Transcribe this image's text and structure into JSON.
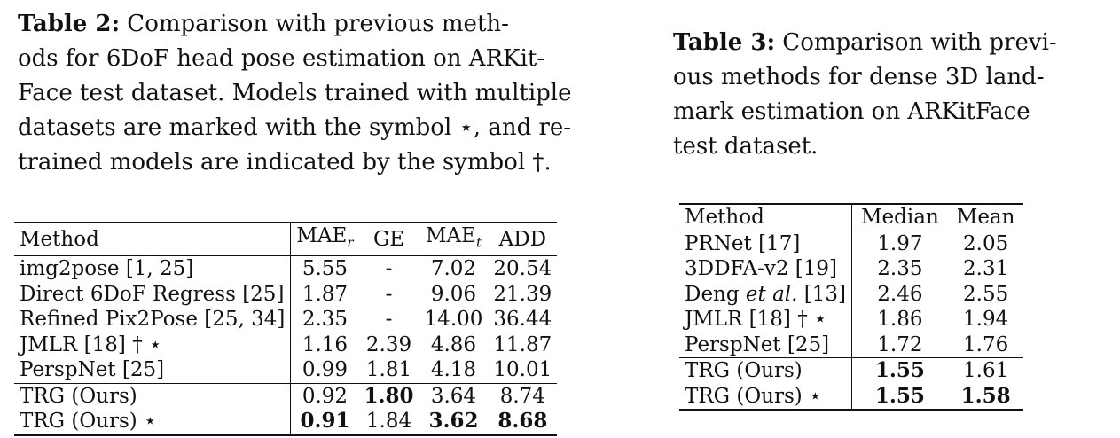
{
  "table2": {
    "caption_label": "Table 2:",
    "caption_lines": [
      " Comparison with previous meth-",
      "ods for 6DoF head pose estimation on ARKit-",
      "Face test dataset. Models trained with multiple",
      "datasets are marked with the symbol ⋆, and re-",
      "trained models are indicated by the symbol †."
    ],
    "headers": [
      "Method",
      "MAE",
      "r",
      "GE",
      "MAE",
      "t",
      "ADD"
    ],
    "rows": [
      {
        "method": "img2pose [1, 25]",
        "mae_r": "5.55",
        "ge": "-",
        "mae_t": "7.02",
        "add": "20.54"
      },
      {
        "method": "Direct 6DoF Regress [25]",
        "mae_r": "1.87",
        "ge": "-",
        "mae_t": "9.06",
        "add": "21.39"
      },
      {
        "method": "Refined Pix2Pose [25, 34]",
        "mae_r": "2.35",
        "ge": "-",
        "mae_t": "14.00",
        "add": "36.44"
      },
      {
        "method": "JMLR [18] † ⋆",
        "mae_r": "1.16",
        "ge": "2.39",
        "mae_t": "4.86",
        "add": "11.87"
      },
      {
        "method": "PerspNet [25]",
        "mae_r": "0.99",
        "ge": "1.81",
        "mae_t": "4.18",
        "add": "10.01"
      },
      {
        "method": "TRG (Ours)",
        "mae_r": "0.92",
        "ge": "1.80",
        "mae_t": "3.64",
        "add": "8.74"
      },
      {
        "method": "TRG (Ours) ⋆",
        "mae_r": "0.91",
        "ge": "1.84",
        "mae_t": "3.62",
        "add": "8.68"
      }
    ]
  },
  "table3": {
    "caption_label": "Table 3:",
    "caption_lines": [
      " Comparison with previ-",
      "ous methods for dense 3D land-",
      "mark estimation on ARKitFace",
      "test dataset."
    ],
    "headers": [
      "Method",
      "Median",
      "Mean"
    ],
    "rows": [
      {
        "method_pre": "PRNet [17]",
        "method_it": "",
        "method_post": "",
        "median": "1.97",
        "mean": "2.05"
      },
      {
        "method_pre": "3DDFA-v2 [19]",
        "method_it": "",
        "method_post": "",
        "median": "2.35",
        "mean": "2.31"
      },
      {
        "method_pre": "Deng ",
        "method_it": "et al.",
        "method_post": " [13]",
        "median": "2.46",
        "mean": "2.55"
      },
      {
        "method_pre": "JMLR [18] † ⋆",
        "method_it": "",
        "method_post": "",
        "median": "1.86",
        "mean": "1.94"
      },
      {
        "method_pre": "PerspNet [25]",
        "method_it": "",
        "method_post": "",
        "median": "1.72",
        "mean": "1.76"
      },
      {
        "method_pre": "TRG (Ours)",
        "method_it": "",
        "method_post": "",
        "median": "1.55",
        "mean": "1.61"
      },
      {
        "method_pre": "TRG (Ours) ⋆",
        "method_it": "",
        "method_post": "",
        "median": "1.55",
        "mean": "1.58"
      }
    ]
  }
}
